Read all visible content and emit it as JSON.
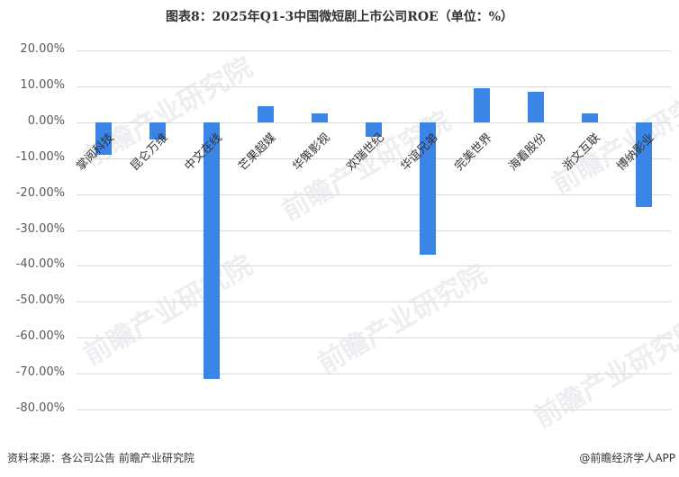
{
  "title": "图表8：2025年Q1-3中国微短剧上市公司ROE（单位：%）",
  "source": "资料来源：各公司公告 前瞻产业研究院",
  "credit": "@前瞻经济学人APP",
  "watermark": "前瞻产业研究院",
  "colors": {
    "bar": "#3a85e5",
    "grid": "#d9d9d9"
  },
  "y_ticks": [
    "20.00%",
    "10.00%",
    "0.00%",
    "-10.00%",
    "-20.00%",
    "-30.00%",
    "-40.00%",
    "-50.00%",
    "-60.00%",
    "-70.00%",
    "-80.00%"
  ],
  "chart_data": {
    "type": "bar",
    "title": "图表8：2025年Q1-3中国微短剧上市公司ROE（单位：%）",
    "xlabel": "",
    "ylabel": "",
    "ylim": [
      -80,
      20
    ],
    "grid": true,
    "legend": "none",
    "categories": [
      "掌阅科技",
      "昆仑万维",
      "中文在线",
      "芒果超媒",
      "华策影视",
      "欢瑞世纪",
      "华谊兄弟",
      "完美世界",
      "海看股份",
      "浙文互联",
      "博纳影业"
    ],
    "values": [
      -8.9,
      -4.8,
      -71.5,
      4.4,
      2.4,
      -4.1,
      -36.8,
      9.5,
      8.5,
      2.4,
      -23.5
    ]
  }
}
